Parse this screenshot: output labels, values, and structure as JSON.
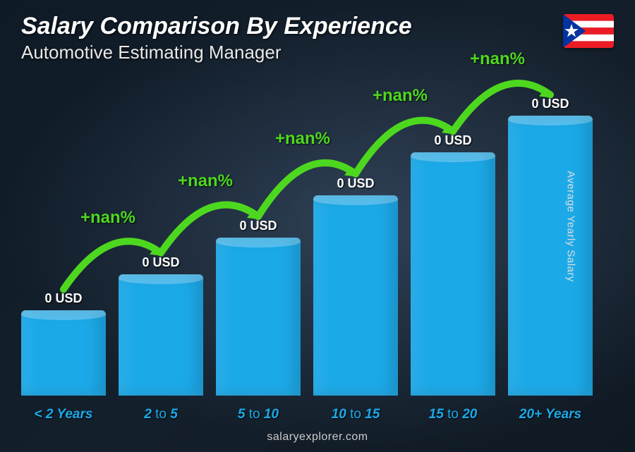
{
  "header": {
    "title": "Salary Comparison By Experience",
    "subtitle": "Automotive Estimating Manager"
  },
  "y_axis_label": "Average Yearly Salary",
  "footer": "salaryexplorer.com",
  "chart": {
    "type": "bar",
    "background_color": "#1e2e3e",
    "bar_color": "#1ca9e8",
    "bar_top_highlight": "rgba(255,255,255,0.25)",
    "label_color": "#1ca9e8",
    "arrow_color": "#4dd81f",
    "value_color": "#ffffff",
    "bar_width_ratio": 0.82,
    "bars": [
      {
        "category_html": "< 2 Years",
        "value_label": "0 USD",
        "height_pct": 28
      },
      {
        "category_html": "2 <span class='dim'>to</span> 5",
        "value_label": "0 USD",
        "height_pct": 40
      },
      {
        "category_html": "5 <span class='dim'>to</span> 10",
        "value_label": "0 USD",
        "height_pct": 52
      },
      {
        "category_html": "10 <span class='dim'>to</span> 15",
        "value_label": "0 USD",
        "height_pct": 66
      },
      {
        "category_html": "15 <span class='dim'>to</span> 20",
        "value_label": "0 USD",
        "height_pct": 80
      },
      {
        "category_html": "20+ Years",
        "value_label": "0 USD",
        "height_pct": 92
      }
    ],
    "deltas": [
      {
        "label": "+nan%"
      },
      {
        "label": "+nan%"
      },
      {
        "label": "+nan%"
      },
      {
        "label": "+nan%"
      },
      {
        "label": "+nan%"
      }
    ]
  },
  "flag": {
    "stripe_red": "#ed1c24",
    "stripe_white": "#ffffff",
    "triangle_blue": "#0033a0",
    "star_white": "#ffffff"
  }
}
